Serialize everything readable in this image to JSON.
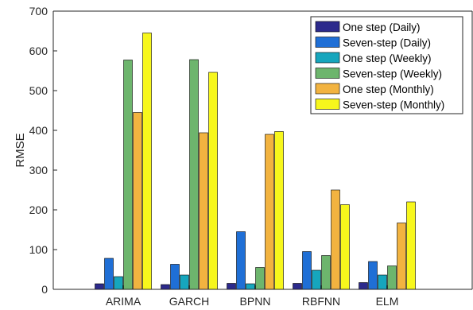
{
  "chart_data": {
    "type": "bar",
    "categories": [
      "ARIMA",
      "GARCH",
      "BPNN",
      "RBFNN",
      "ELM"
    ],
    "series": [
      {
        "name": "One step (Daily)",
        "values": [
          14,
          12,
          15,
          15,
          17
        ],
        "color": "#2c2a8c"
      },
      {
        "name": "Seven-step (Daily)",
        "values": [
          78,
          63,
          145,
          95,
          70
        ],
        "color": "#1f6fd6"
      },
      {
        "name": "One step (Weekly)",
        "values": [
          32,
          36,
          14,
          48,
          36
        ],
        "color": "#16a6bd"
      },
      {
        "name": "Seven-step (Weekly)",
        "values": [
          577,
          578,
          55,
          85,
          59
        ],
        "color": "#6db56d"
      },
      {
        "name": "One step (Monthly)",
        "values": [
          445,
          394,
          390,
          250,
          167
        ],
        "color": "#f2b340"
      },
      {
        "name": "Seven-step (Monthly)",
        "values": [
          645,
          546,
          397,
          213,
          220
        ],
        "color": "#f7f71c"
      }
    ],
    "xlabel": "",
    "ylabel": "RMSE",
    "ylim": [
      0,
      700
    ],
    "yticks": [
      0,
      100,
      200,
      300,
      400,
      500,
      600,
      700
    ],
    "grid": false,
    "legend_position": "top-right"
  }
}
